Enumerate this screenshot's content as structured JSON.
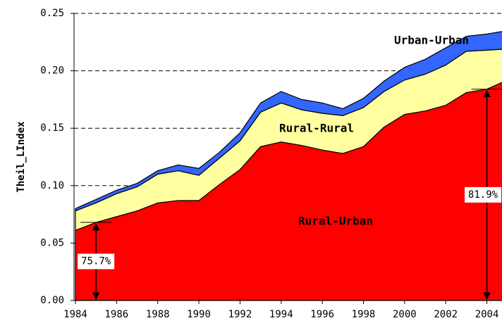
{
  "chart_data": {
    "type": "stacked_area",
    "y_label": "Theil_LIndex",
    "x": [
      1984,
      1985,
      1986,
      1987,
      1988,
      1989,
      1990,
      1991,
      1992,
      1993,
      1994,
      1995,
      1996,
      1997,
      1998,
      1999,
      2000,
      2001,
      2002,
      2003,
      2004,
      2005
    ],
    "series": [
      {
        "name": "Rural-Urban",
        "color": "#ff0000",
        "values": [
          0.061,
          0.068,
          0.073,
          0.078,
          0.085,
          0.087,
          0.087,
          0.101,
          0.114,
          0.134,
          0.138,
          0.135,
          0.131,
          0.128,
          0.134,
          0.151,
          0.162,
          0.165,
          0.17,
          0.181,
          0.184,
          0.192
        ]
      },
      {
        "name": "Rural-Rural",
        "color": "#ffffa0",
        "values": [
          0.017,
          0.017,
          0.02,
          0.021,
          0.025,
          0.026,
          0.022,
          0.023,
          0.025,
          0.03,
          0.034,
          0.031,
          0.032,
          0.033,
          0.034,
          0.031,
          0.03,
          0.032,
          0.035,
          0.036,
          0.034,
          0.027
        ]
      },
      {
        "name": "Urban-Urban",
        "color": "#3366ff",
        "values": [
          0.002,
          0.003,
          0.003,
          0.003,
          0.003,
          0.005,
          0.006,
          0.005,
          0.007,
          0.008,
          0.01,
          0.009,
          0.009,
          0.006,
          0.008,
          0.009,
          0.011,
          0.013,
          0.015,
          0.013,
          0.014,
          0.016
        ]
      }
    ],
    "annotations": [
      {
        "text": "75.7%",
        "x": 1985
      },
      {
        "text": "81.9%",
        "x": 2004
      }
    ],
    "xlim": [
      1984,
      2004.7
    ],
    "xticks": [
      1984,
      1986,
      1988,
      1990,
      1992,
      1994,
      1996,
      1998,
      2000,
      2002,
      2004
    ],
    "ylim": [
      0,
      0.25
    ],
    "yticks": [
      {
        "value": 0,
        "label": "0.00"
      },
      {
        "value": 0.05,
        "label": "0.05"
      },
      {
        "value": 0.1,
        "label": "0.10"
      },
      {
        "value": 0.15,
        "label": "0.15"
      },
      {
        "value": 0.2,
        "label": "0.20"
      },
      {
        "value": 0.25,
        "label": "0.25"
      }
    ],
    "grid": true
  }
}
